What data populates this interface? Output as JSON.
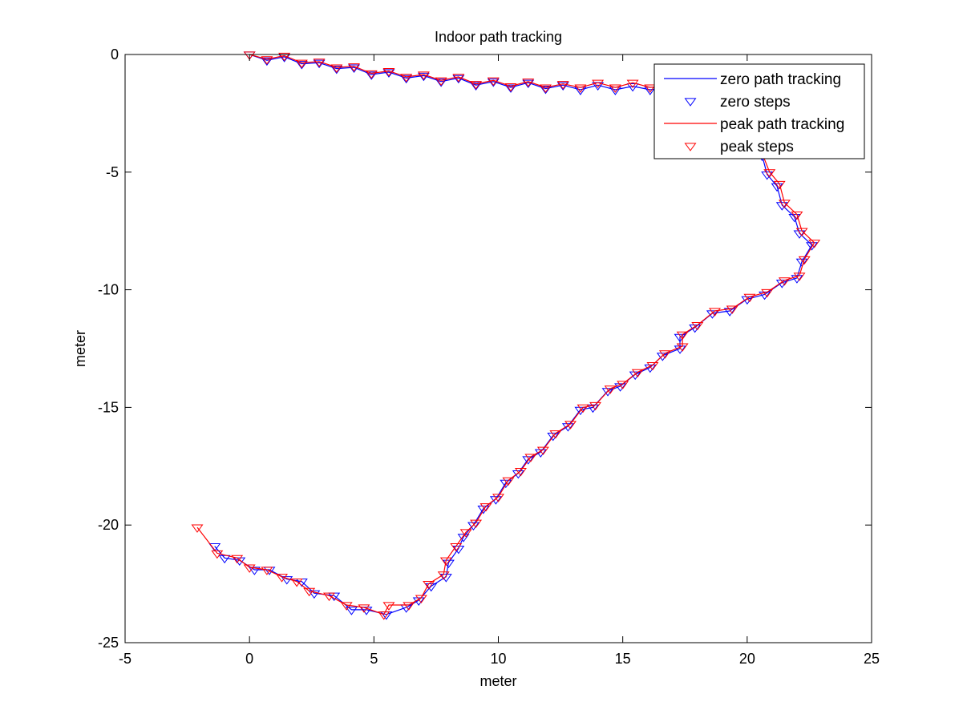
{
  "chart_data": {
    "type": "line",
    "title": "Indoor path tracking",
    "xlabel": "meter",
    "ylabel": "meter",
    "xlim": [
      -5,
      25
    ],
    "ylim": [
      -25,
      0
    ],
    "xticks": [
      -5,
      0,
      5,
      10,
      15,
      20,
      25
    ],
    "yticks": [
      0,
      -5,
      -10,
      -15,
      -20,
      -25
    ],
    "xtick_labels": [
      "-5",
      "0",
      "5",
      "10",
      "15",
      "20",
      "25"
    ],
    "ytick_labels": [
      "0",
      "-5",
      "-10",
      "-15",
      "-20",
      "-25"
    ],
    "grid": false,
    "legend_position": "top-right",
    "legend": [
      {
        "label": "zero path tracking",
        "kind": "line",
        "color": "#0000ff"
      },
      {
        "label": "zero steps",
        "kind": "marker",
        "color": "#0000ff"
      },
      {
        "label": "peak path tracking",
        "kind": "line",
        "color": "#ff0000"
      },
      {
        "label": "peak steps",
        "kind": "marker",
        "color": "#ff0000"
      }
    ],
    "series": [
      {
        "name": "zero path tracking",
        "color": "#0000ff",
        "marker": "triangle-down",
        "points": [
          [
            0,
            0
          ],
          [
            0.7,
            -0.25
          ],
          [
            1.4,
            -0.1
          ],
          [
            2.1,
            -0.4
          ],
          [
            2.8,
            -0.35
          ],
          [
            3.5,
            -0.6
          ],
          [
            4.2,
            -0.55
          ],
          [
            4.9,
            -0.85
          ],
          [
            5.6,
            -0.75
          ],
          [
            6.3,
            -1.0
          ],
          [
            7.0,
            -0.9
          ],
          [
            7.7,
            -1.15
          ],
          [
            8.4,
            -1.0
          ],
          [
            9.1,
            -1.3
          ],
          [
            9.8,
            -1.15
          ],
          [
            10.5,
            -1.4
          ],
          [
            11.2,
            -1.2
          ],
          [
            11.9,
            -1.45
          ],
          [
            12.6,
            -1.3
          ],
          [
            13.3,
            -1.5
          ],
          [
            14.0,
            -1.3
          ],
          [
            14.7,
            -1.5
          ],
          [
            15.4,
            -1.35
          ],
          [
            16.1,
            -1.5
          ],
          [
            16.8,
            -1.4
          ],
          [
            17.5,
            -1.55
          ],
          [
            18.2,
            -1.5
          ],
          [
            18.9,
            -1.65
          ],
          [
            19.6,
            -1.8
          ],
          [
            20.1,
            -2.3
          ],
          [
            20.4,
            -3.0
          ],
          [
            20.6,
            -4.3
          ],
          [
            20.8,
            -5.1
          ],
          [
            21.2,
            -5.6
          ],
          [
            21.4,
            -6.4
          ],
          [
            21.9,
            -6.9
          ],
          [
            22.1,
            -7.6
          ],
          [
            22.6,
            -8.1
          ],
          [
            22.2,
            -8.8
          ],
          [
            22.0,
            -9.5
          ],
          [
            21.4,
            -9.7
          ],
          [
            20.7,
            -10.2
          ],
          [
            20.0,
            -10.4
          ],
          [
            19.3,
            -10.9
          ],
          [
            18.6,
            -11.0
          ],
          [
            17.9,
            -11.6
          ],
          [
            17.3,
            -12.0
          ],
          [
            17.3,
            -12.5
          ],
          [
            16.6,
            -12.8
          ],
          [
            16.1,
            -13.3
          ],
          [
            15.5,
            -13.6
          ],
          [
            14.9,
            -14.1
          ],
          [
            14.4,
            -14.3
          ],
          [
            13.8,
            -15.0
          ],
          [
            13.3,
            -15.1
          ],
          [
            12.8,
            -15.8
          ],
          [
            12.2,
            -16.2
          ],
          [
            11.7,
            -16.9
          ],
          [
            11.2,
            -17.2
          ],
          [
            10.8,
            -17.8
          ],
          [
            10.3,
            -18.2
          ],
          [
            9.9,
            -18.9
          ],
          [
            9.4,
            -19.3
          ],
          [
            9.0,
            -20.0
          ],
          [
            8.6,
            -20.5
          ],
          [
            8.4,
            -21.0
          ],
          [
            8.0,
            -21.6
          ],
          [
            7.9,
            -22.2
          ],
          [
            7.3,
            -22.6
          ],
          [
            6.8,
            -23.2
          ],
          [
            6.3,
            -23.5
          ],
          [
            5.5,
            -23.8
          ],
          [
            4.7,
            -23.6
          ],
          [
            4.1,
            -23.6
          ],
          [
            3.4,
            -23.0
          ],
          [
            2.6,
            -22.9
          ],
          [
            2.1,
            -22.4
          ],
          [
            1.5,
            -22.3
          ],
          [
            0.8,
            -21.9
          ],
          [
            0.2,
            -21.9
          ],
          [
            -0.4,
            -21.5
          ],
          [
            -1.0,
            -21.4
          ],
          [
            -1.4,
            -20.9
          ]
        ]
      },
      {
        "name": "peak path tracking",
        "color": "#ff0000",
        "marker": "triangle-down",
        "points": [
          [
            0,
            0
          ],
          [
            0.7,
            -0.2
          ],
          [
            1.4,
            -0.05
          ],
          [
            2.1,
            -0.35
          ],
          [
            2.8,
            -0.3
          ],
          [
            3.5,
            -0.55
          ],
          [
            4.2,
            -0.5
          ],
          [
            4.9,
            -0.8
          ],
          [
            5.6,
            -0.7
          ],
          [
            6.3,
            -0.95
          ],
          [
            7.0,
            -0.85
          ],
          [
            7.7,
            -1.1
          ],
          [
            8.4,
            -0.95
          ],
          [
            9.1,
            -1.25
          ],
          [
            9.8,
            -1.1
          ],
          [
            10.5,
            -1.35
          ],
          [
            11.2,
            -1.15
          ],
          [
            11.9,
            -1.4
          ],
          [
            12.6,
            -1.25
          ],
          [
            13.3,
            -1.4
          ],
          [
            14.0,
            -1.2
          ],
          [
            14.7,
            -1.4
          ],
          [
            15.4,
            -1.2
          ],
          [
            16.1,
            -1.4
          ],
          [
            16.8,
            -1.3
          ],
          [
            17.5,
            -1.5
          ],
          [
            18.2,
            -1.45
          ],
          [
            18.9,
            -1.6
          ],
          [
            19.6,
            -1.75
          ],
          [
            20.1,
            -2.25
          ],
          [
            20.4,
            -2.95
          ],
          [
            20.6,
            -4.2
          ],
          [
            20.9,
            -5.0
          ],
          [
            21.3,
            -5.5
          ],
          [
            21.5,
            -6.3
          ],
          [
            22.0,
            -6.8
          ],
          [
            22.2,
            -7.5
          ],
          [
            22.7,
            -8.0
          ],
          [
            22.3,
            -8.7
          ],
          [
            22.1,
            -9.4
          ],
          [
            21.5,
            -9.6
          ],
          [
            20.8,
            -10.1
          ],
          [
            20.1,
            -10.3
          ],
          [
            19.4,
            -10.8
          ],
          [
            18.7,
            -10.9
          ],
          [
            18.0,
            -11.5
          ],
          [
            17.4,
            -11.9
          ],
          [
            17.4,
            -12.4
          ],
          [
            16.7,
            -12.7
          ],
          [
            16.2,
            -13.2
          ],
          [
            15.6,
            -13.5
          ],
          [
            15.0,
            -14.0
          ],
          [
            14.5,
            -14.2
          ],
          [
            13.9,
            -14.9
          ],
          [
            13.4,
            -15.0
          ],
          [
            12.9,
            -15.7
          ],
          [
            12.3,
            -16.1
          ],
          [
            11.8,
            -16.8
          ],
          [
            11.3,
            -17.1
          ],
          [
            10.9,
            -17.7
          ],
          [
            10.4,
            -18.1
          ],
          [
            10.0,
            -18.8
          ],
          [
            9.5,
            -19.2
          ],
          [
            9.1,
            -19.9
          ],
          [
            8.7,
            -20.3
          ],
          [
            8.3,
            -20.9
          ],
          [
            7.9,
            -21.5
          ],
          [
            7.8,
            -22.1
          ],
          [
            7.2,
            -22.5
          ],
          [
            6.9,
            -23.1
          ],
          [
            6.4,
            -23.4
          ],
          [
            5.6,
            -23.4
          ],
          [
            5.4,
            -23.8
          ],
          [
            4.6,
            -23.5
          ],
          [
            3.9,
            -23.4
          ],
          [
            3.2,
            -23.0
          ],
          [
            2.4,
            -22.8
          ],
          [
            1.9,
            -22.4
          ],
          [
            1.3,
            -22.2
          ],
          [
            0.7,
            -21.9
          ],
          [
            0.0,
            -21.8
          ],
          [
            -0.5,
            -21.4
          ],
          [
            -1.3,
            -21.2
          ],
          [
            -2.1,
            -20.1
          ]
        ]
      }
    ]
  }
}
